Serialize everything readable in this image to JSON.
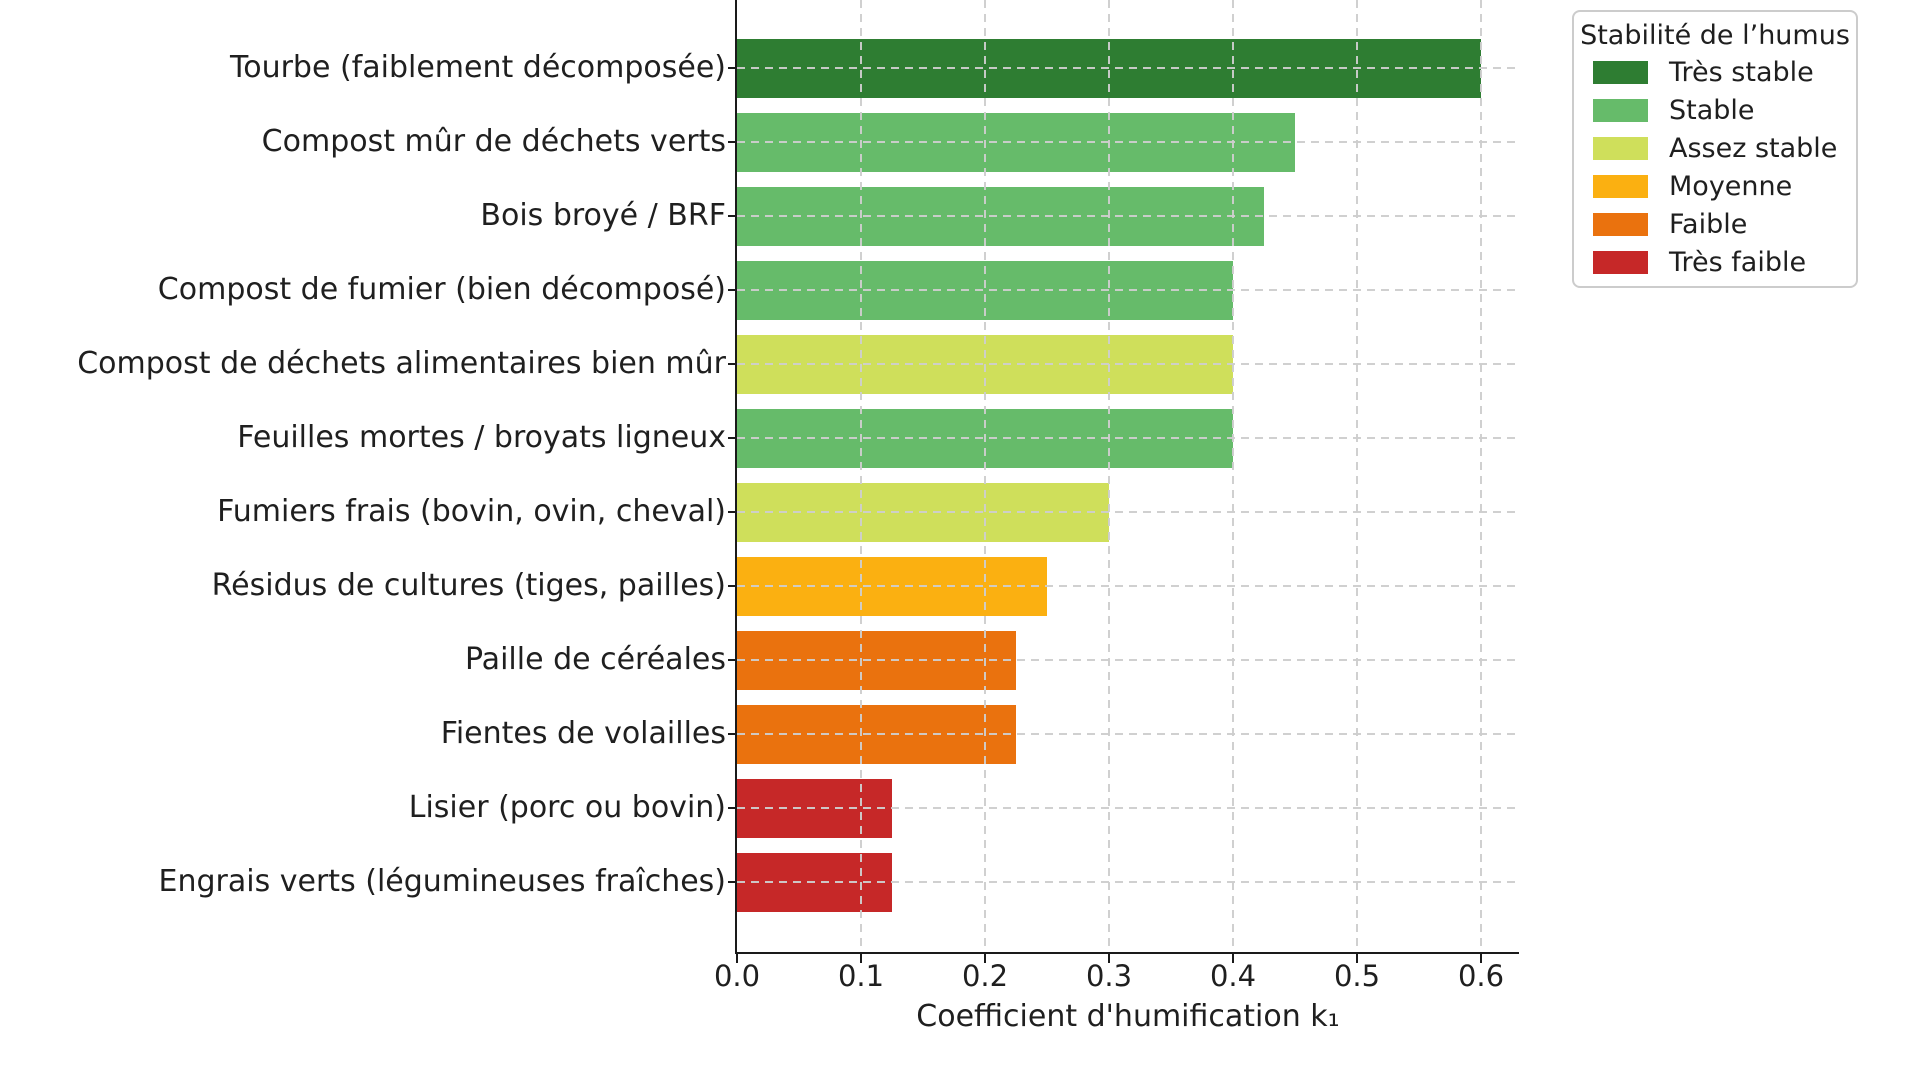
{
  "page": {
    "background": "#ffffff"
  },
  "chart_data": {
    "type": "bar",
    "orientation": "horizontal",
    "title": "",
    "xlabel": "Coefficient d'humification k₁",
    "ylabel": "",
    "xlim": [
      0,
      0.63
    ],
    "xtick_labels": [
      "0.0",
      "0.1",
      "0.2",
      "0.3",
      "0.4",
      "0.5",
      "0.6"
    ],
    "xtick_values": [
      0,
      0.1,
      0.2,
      0.3,
      0.4,
      0.5,
      0.6
    ],
    "grid": {
      "axis": "both",
      "style": "dashed",
      "color": "#cecece",
      "drawn_over_bars": true
    },
    "categories": [
      "Tourbe (faiblement décomposée)",
      "Compost mûr de déchets verts",
      "Bois broyé / BRF",
      "Compost de fumier (bien décomposé)",
      "Compost de déchets alimentaires bien mûr",
      "Feuilles mortes / broyats ligneux",
      "Fumiers frais (bovin, ovin, cheval)",
      "Résidus de cultures (tiges, pailles)",
      "Paille de céréales",
      "Fientes de volailles",
      "Lisier (porc ou bovin)",
      "Engrais verts (légumineuses fraîches)"
    ],
    "values": [
      0.6,
      0.45,
      0.425,
      0.4,
      0.4,
      0.4,
      0.3,
      0.25,
      0.225,
      0.225,
      0.125,
      0.125
    ],
    "bar_levels": [
      "tres_stable",
      "stable",
      "stable",
      "stable",
      "assez_stable",
      "stable",
      "assez_stable",
      "moyenne",
      "faible",
      "faible",
      "tres_faible",
      "tres_faible"
    ],
    "level_colors": {
      "tres_stable": "#2e7d32",
      "stable": "#66bb6a",
      "assez_stable": "#cfdf5b",
      "moyenne": "#fbb011",
      "faible": "#ea720e",
      "tres_faible": "#c62828"
    },
    "legend": {
      "title": "Stabilité de l’humus",
      "position": "outside-upper-right",
      "entries": [
        {
          "label": "Très stable",
          "level": "tres_stable"
        },
        {
          "label": "Stable",
          "level": "stable"
        },
        {
          "label": "Assez stable",
          "level": "assez_stable"
        },
        {
          "label": "Moyenne",
          "level": "moyenne"
        },
        {
          "label": "Faible",
          "level": "faible"
        },
        {
          "label": "Très faible",
          "level": "tres_faible"
        }
      ]
    }
  }
}
